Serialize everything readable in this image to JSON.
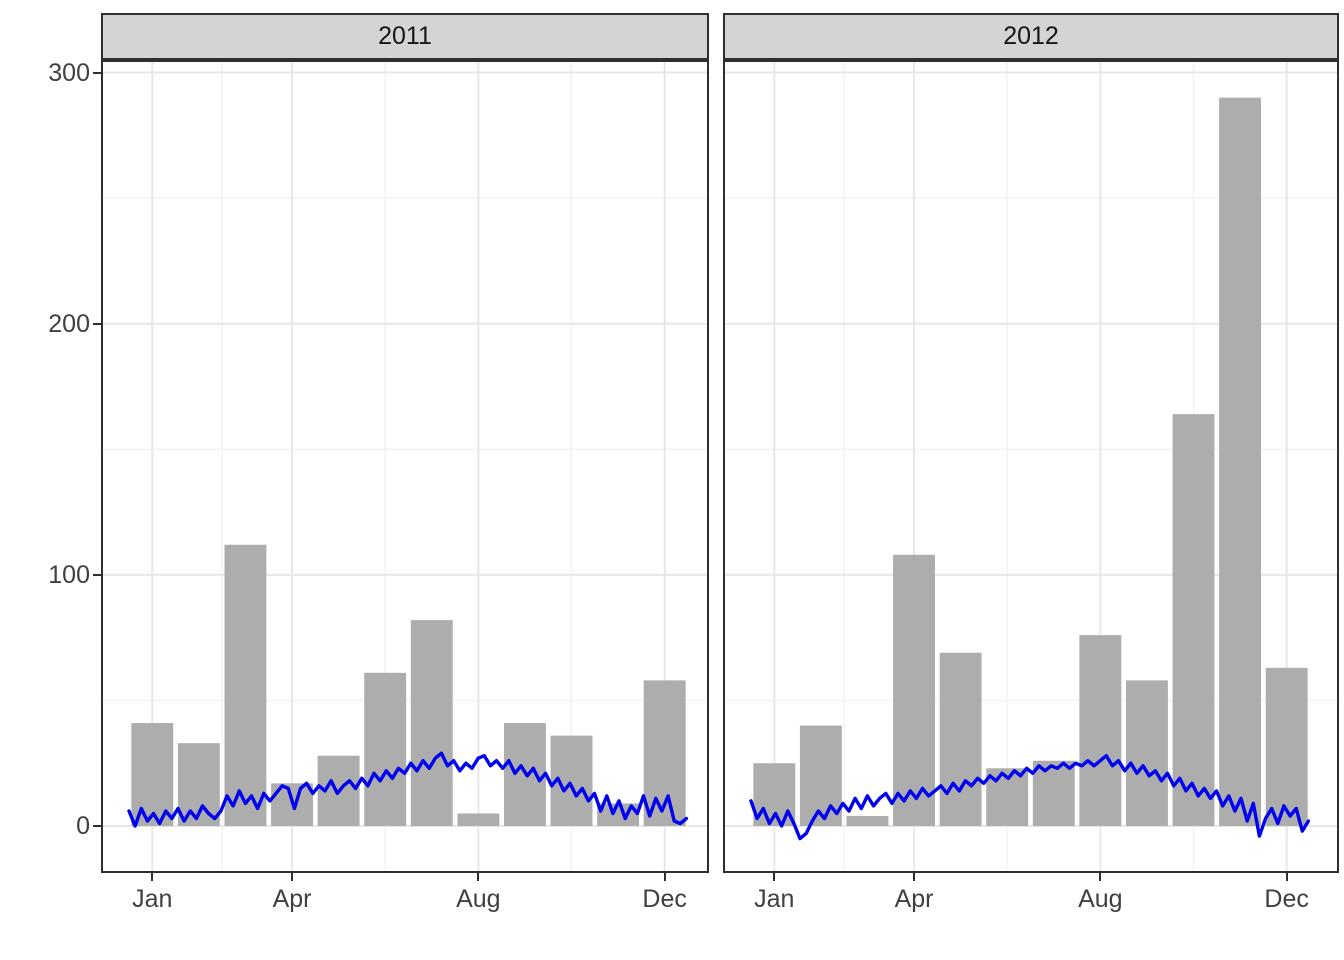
{
  "chart_data": {
    "type": "bar+line",
    "title": "",
    "grid": true,
    "legend": "none",
    "months": [
      "Jan",
      "Feb",
      "Mar",
      "Apr",
      "May",
      "Jun",
      "Jul",
      "Aug",
      "Sep",
      "Oct",
      "Nov",
      "Dec"
    ],
    "facets": [
      {
        "label": "2011",
        "bars_monthly": [
          41,
          33,
          112,
          17,
          28,
          61,
          82,
          5,
          41,
          36,
          9,
          58
        ],
        "line_daily_sampled": {
          "start_day": 1,
          "step_days": 4,
          "values": [
            6,
            0,
            7,
            2,
            5,
            1,
            6,
            3,
            7,
            2,
            6,
            3,
            8,
            5,
            3,
            6,
            12,
            8,
            14,
            9,
            12,
            7,
            13,
            10,
            13,
            16,
            15,
            7,
            15,
            17,
            13,
            16,
            14,
            18,
            13,
            16,
            18,
            15,
            19,
            16,
            21,
            18,
            22,
            19,
            23,
            21,
            25,
            22,
            26,
            23,
            27,
            29,
            24,
            26,
            22,
            25,
            23,
            27,
            28,
            24,
            26,
            23,
            26,
            21,
            24,
            20,
            23,
            18,
            21,
            16,
            19,
            14,
            17,
            12,
            15,
            10,
            13,
            6,
            12,
            5,
            10,
            3,
            8,
            5,
            12,
            4,
            11,
            6,
            12,
            2,
            1,
            3
          ]
        }
      },
      {
        "label": "2012",
        "bars_monthly": [
          25,
          40,
          4,
          108,
          69,
          23,
          26,
          76,
          58,
          164,
          290,
          63
        ],
        "line_daily_sampled": {
          "start_day": 1,
          "step_days": 4,
          "values": [
            10,
            3,
            7,
            1,
            5,
            0,
            6,
            1,
            -5,
            -3,
            2,
            6,
            3,
            8,
            5,
            9,
            6,
            11,
            7,
            12,
            8,
            11,
            13,
            9,
            13,
            10,
            14,
            11,
            15,
            12,
            14,
            16,
            13,
            17,
            14,
            18,
            16,
            19,
            17,
            20,
            18,
            21,
            19,
            22,
            20,
            23,
            21,
            24,
            22,
            24,
            23,
            25,
            23,
            25,
            24,
            26,
            24,
            26,
            28,
            24,
            26,
            22,
            25,
            21,
            24,
            20,
            22,
            18,
            21,
            16,
            19,
            14,
            17,
            12,
            15,
            11,
            14,
            8,
            12,
            6,
            11,
            2,
            9,
            -4,
            3,
            7,
            1,
            8,
            4,
            7,
            -2,
            2
          ]
        }
      }
    ],
    "x_axis": {
      "tick_labels": [
        "Jan",
        "Apr",
        "Aug",
        "Dec"
      ],
      "tick_month_index": [
        1,
        4,
        8,
        12
      ],
      "minor_gridline_month_positions": [
        2.5,
        6,
        10
      ],
      "months_per_facet": 12
    },
    "y_axis": {
      "tick_labels": [
        "0",
        "100",
        "200",
        "300"
      ],
      "tick_values": [
        0,
        100,
        200,
        300
      ],
      "minor_gridline_values": [
        50,
        150,
        250
      ],
      "domain": [
        -18.7,
        305
      ]
    },
    "colors": {
      "bar_fill": "#ADADAD",
      "line_stroke": "#0000EE",
      "strip_fill": "#D4D4D4",
      "strip_border": "#2F2F2F",
      "panel_border": "#2F2F2F",
      "grid_major": "#E7E7E7",
      "grid_minor": "#F2F2F2",
      "axis_text": "#404040",
      "strip_text": "#161616",
      "tick_mark": "#2F2F2F",
      "panel_bg": "#FFFFFF"
    }
  }
}
